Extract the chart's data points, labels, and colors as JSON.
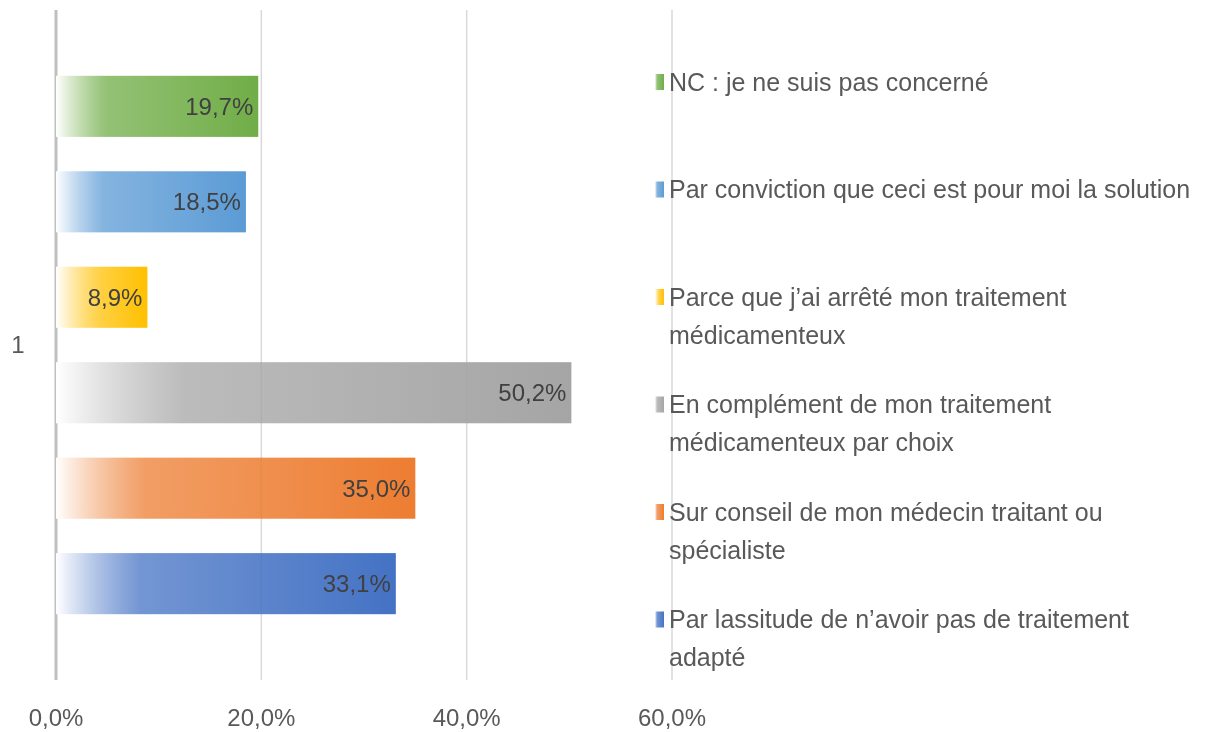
{
  "chart_data": {
    "type": "bar",
    "orientation": "horizontal",
    "categories": [
      "1"
    ],
    "series": [
      {
        "name": "NC : je ne suis pas concerné",
        "color": "#70ad47",
        "values": [
          19.7
        ],
        "value_labels": [
          "19,7%"
        ]
      },
      {
        "name": "Par conviction que ceci est pour moi la solution",
        "color": "#5b9bd5",
        "values": [
          18.5
        ],
        "value_labels": [
          "18,5%"
        ]
      },
      {
        "name": "Parce que j’ai arrêté mon traitement médicamenteux",
        "color": "#ffc000",
        "values": [
          8.9
        ],
        "value_labels": [
          "8,9%"
        ]
      },
      {
        "name": "En complément de mon traitement médicamenteux par choix",
        "color": "#a5a5a5",
        "values": [
          50.2
        ],
        "value_labels": [
          "50,2%"
        ]
      },
      {
        "name": "Sur conseil de mon médecin traitant ou spécialiste",
        "color": "#ed7d31",
        "values": [
          35.0
        ],
        "value_labels": [
          "35,0%"
        ]
      },
      {
        "name": "Par lassitude de n’avoir pas de traitement adapté",
        "color": "#4472c4",
        "values": [
          33.1
        ],
        "value_labels": [
          "33,1%"
        ]
      }
    ],
    "xlim": [
      0,
      60
    ],
    "xticks": [
      {
        "value": 0,
        "label": "0,0%"
      },
      {
        "value": 20,
        "label": "20,0%"
      },
      {
        "value": 40,
        "label": "40,0%"
      },
      {
        "value": 60,
        "label": "60,0%"
      }
    ],
    "grid": "x",
    "legend": "right"
  }
}
